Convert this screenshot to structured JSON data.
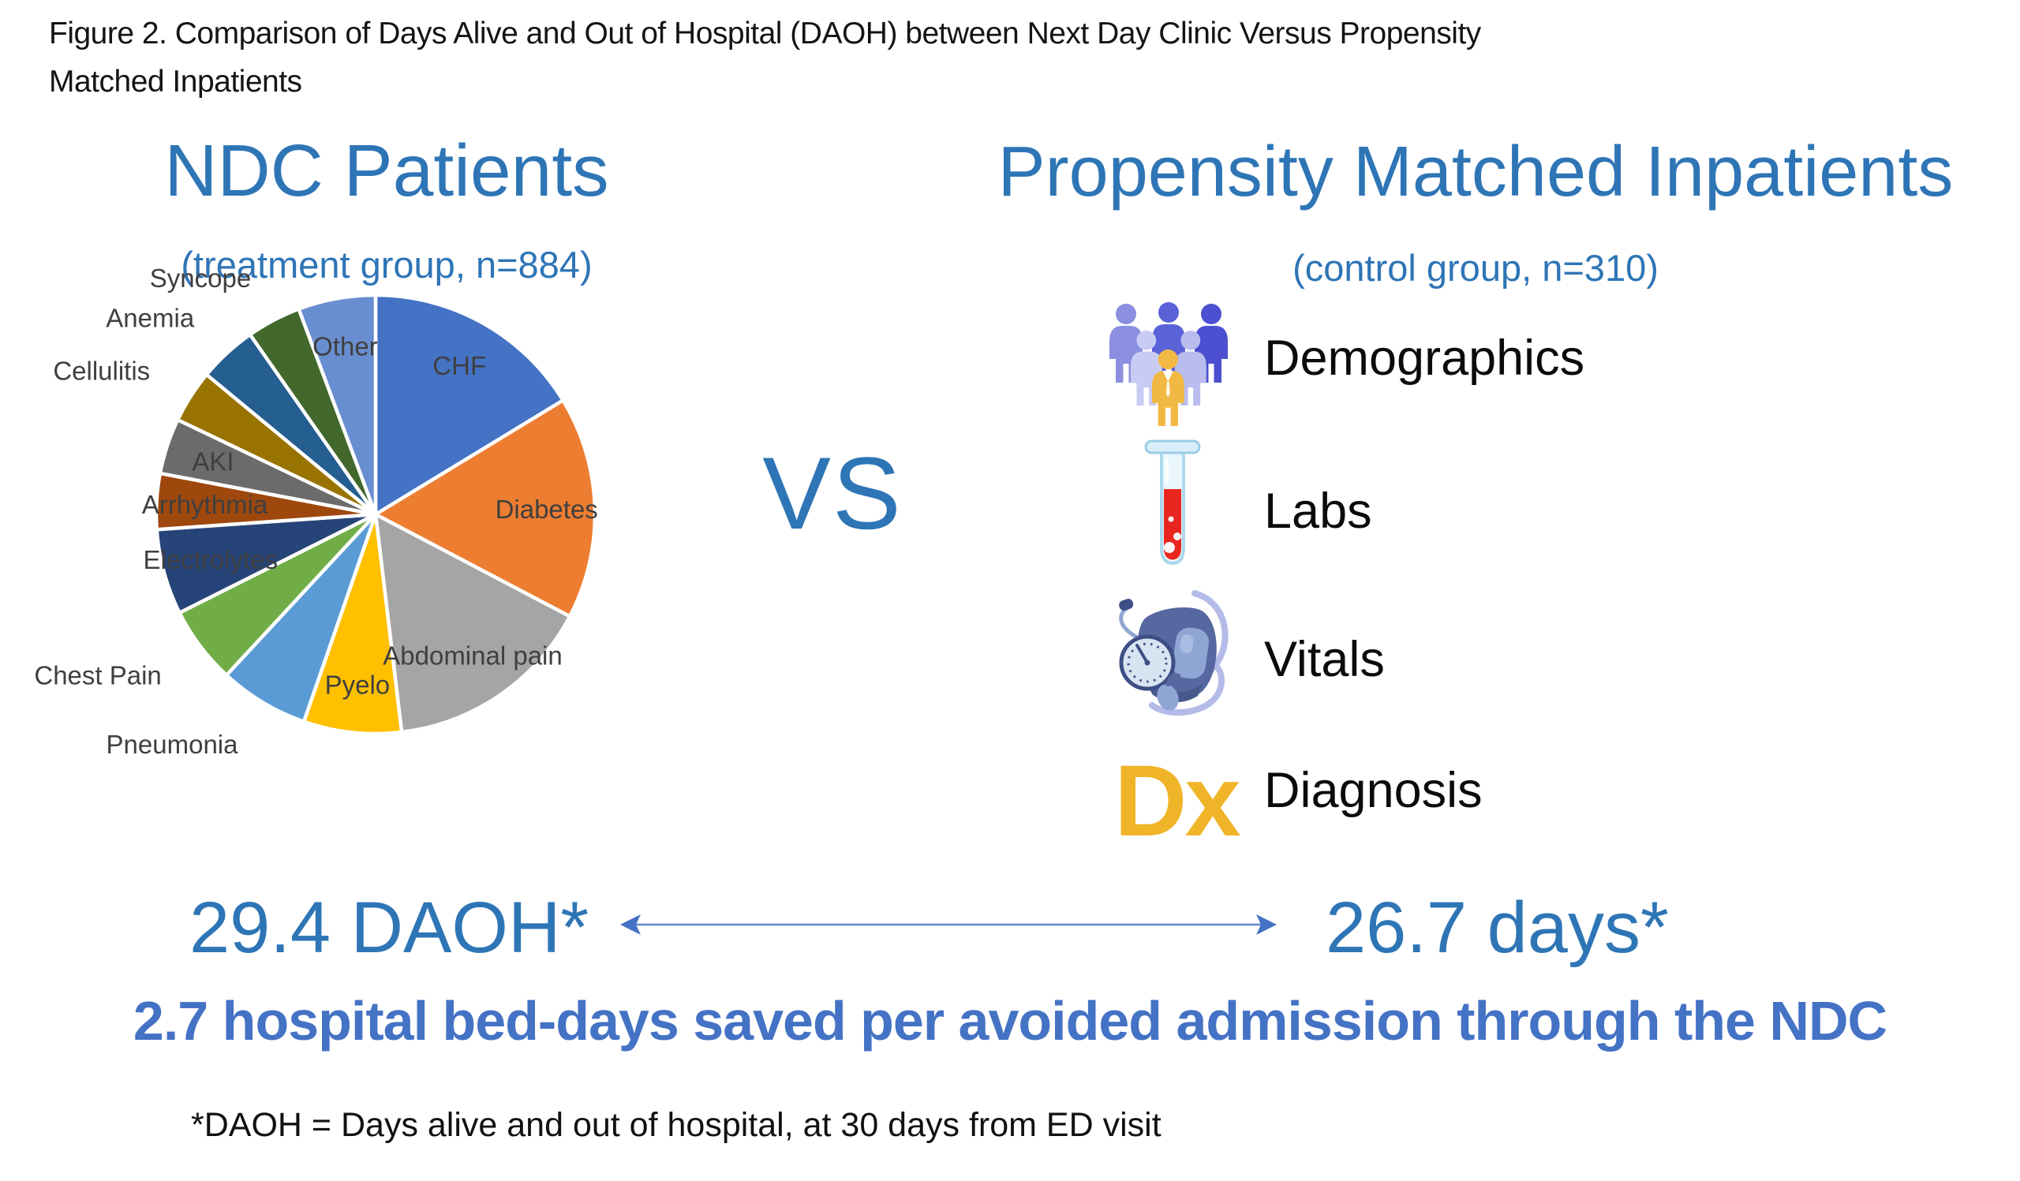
{
  "figure": {
    "title_lines": [
      "Figure 2. Comparison of Days Alive and Out of Hospital (DAOH) between Next Day Clinic Versus Propensity",
      "Matched Inpatients"
    ]
  },
  "left_panel": {
    "heading": "NDC Patients",
    "subtitle": "(treatment group, n=884)"
  },
  "right_panel": {
    "heading": "Propensity Matched Inpatients",
    "subtitle": "(control group, n=310)",
    "items": [
      {
        "icon": "people-group-icon",
        "label": "Demographics"
      },
      {
        "icon": "test-tube-icon",
        "label": "Labs"
      },
      {
        "icon": "blood-pressure-cuff-icon",
        "label": "Vitals"
      },
      {
        "icon": "dx-icon",
        "dx_text": "Dx",
        "label": "Diagnosis"
      }
    ]
  },
  "comparison": {
    "vs_label": "VS",
    "left_value": "29.4 DAOH*",
    "right_value": "26.7 days*",
    "summary": "2.7 hospital bed-days saved per avoided admission through the NDC",
    "footnote": "*DAOH = Days alive and out of hospital, at 30 days from ED visit"
  },
  "chart_data": {
    "type": "pie",
    "title": "NDC Patients",
    "subtitle": "(treatment group, n=884)",
    "units": "percent (estimated from slice angles)",
    "start_angle_deg": 0,
    "direction": "clockwise",
    "legend_position": "none",
    "slices": [
      {
        "label": "CHF",
        "value": 16.3,
        "color": "#4472C4",
        "label_placement": "inside"
      },
      {
        "label": "Diabetes",
        "value": 16.4,
        "color": "#ED7D31",
        "label_placement": "inside"
      },
      {
        "label": "Abdominal pain",
        "value": 15.4,
        "color": "#A5A5A5",
        "label_placement": "inside"
      },
      {
        "label": "Pyelo",
        "value": 7.2,
        "color": "#FFC000",
        "label_placement": "inside"
      },
      {
        "label": "Pneumonia",
        "value": 6.6,
        "color": "#5B9BD5",
        "label_placement": "outside"
      },
      {
        "label": "Chest Pain",
        "value": 5.7,
        "color": "#70AD47",
        "label_placement": "outside"
      },
      {
        "label": "Electrolytes",
        "value": 6.3,
        "color": "#264478",
        "label_placement": "inside"
      },
      {
        "label": "Arrhythmia",
        "value": 4.1,
        "color": "#9E480E",
        "label_placement": "inside"
      },
      {
        "label": "AKI",
        "value": 4.1,
        "color": "#6B6B6B",
        "label_placement": "inside"
      },
      {
        "label": "Cellulitis",
        "value": 3.9,
        "color": "#997300",
        "label_placement": "outside"
      },
      {
        "label": "Anemia",
        "value": 4.3,
        "color": "#255E91",
        "label_placement": "outside"
      },
      {
        "label": "Syncope",
        "value": 4.0,
        "color": "#43682B",
        "label_placement": "outside"
      },
      {
        "label": "Other",
        "value": 5.7,
        "color": "#698ED0",
        "label_placement": "inside"
      }
    ]
  },
  "colors": {
    "heading_blue": "#2E75B6",
    "summary_blue": "#4472C4",
    "dx_gold": "#F0B428",
    "label_gray": "#3F3F3F",
    "arrow_blue": "#4472C4",
    "text_black": "#141414"
  }
}
